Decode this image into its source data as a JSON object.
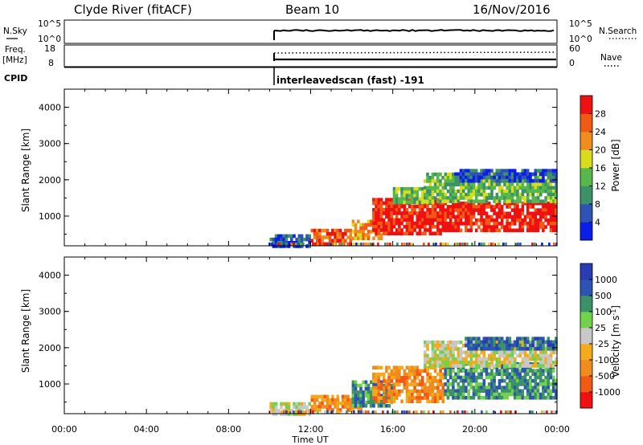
{
  "header": {
    "station": "Clyde River (fitACF)",
    "beam": "Beam 10",
    "date": "16/Nov/2016"
  },
  "top_panels": {
    "nsky_label": "N.Sky",
    "nsky_ticks": [
      "10^5",
      "10^0"
    ],
    "nsearch_label": "N.Search",
    "nsearch_ticks": [
      "10^5",
      "10^0"
    ],
    "freq_label_line1": "Freq.",
    "freq_label_line2": "[MHz]",
    "freq_ticks": [
      "18",
      "8"
    ],
    "nave_label": "Nave",
    "nave_ticks": [
      "60",
      "0"
    ],
    "cpid_label": "CPID",
    "cpid_text": "interleavedscan (fast) -191"
  },
  "colors": {
    "power_scale": [
      "#0a1ee6",
      "#2d53b4",
      "#3c9169",
      "#56b84b",
      "#d7dc1e",
      "#f08c1e",
      "#f05a14",
      "#ee1111"
    ],
    "velocity_scale": [
      "#ee1111",
      "#f05a14",
      "#f08c1e",
      "#f5aa1e",
      "#c8c8c8",
      "#72d24b",
      "#3c9169",
      "#2d53b4",
      "#283cb4"
    ]
  },
  "chart_data": [
    {
      "type": "heatmap",
      "ylabel": "Slant Range [km]",
      "xlabel": "",
      "x_range_hours": [
        0,
        24
      ],
      "ylim": [
        180,
        4500
      ],
      "yticks": [
        "1000",
        "2000",
        "3000",
        "4000"
      ],
      "xticks": [
        "00:00",
        "04:00",
        "08:00",
        "12:00",
        "16:00",
        "20:00",
        "00:00"
      ],
      "colorbar_label": "Power [dB]",
      "colorbar_ticks": [
        "4",
        "8",
        "12",
        "16",
        "20",
        "24",
        "28"
      ],
      "data_start_hour": 9.95,
      "echo_regions": [
        {
          "t0": 10.0,
          "t1": 12.0,
          "r0": 200,
          "r1": 500,
          "level": 1
        },
        {
          "t0": 12.0,
          "t1": 14.0,
          "r0": 250,
          "r1": 650,
          "level": 6
        },
        {
          "t0": 14.0,
          "t1": 15.5,
          "r0": 350,
          "r1": 900,
          "level": 5
        },
        {
          "t0": 15.0,
          "t1": 18.5,
          "r0": 500,
          "r1": 1500,
          "level": 7
        },
        {
          "t0": 16.0,
          "t1": 18.0,
          "r0": 1400,
          "r1": 1800,
          "level": 3
        },
        {
          "t0": 18.5,
          "t1": 24.0,
          "r0": 600,
          "r1": 1400,
          "level": 7
        },
        {
          "t0": 17.5,
          "t1": 24.0,
          "r0": 1400,
          "r1": 2200,
          "level": 3
        },
        {
          "t0": 19.0,
          "t1": 24.0,
          "r0": 2000,
          "r1": 2300,
          "level": 1
        }
      ]
    },
    {
      "type": "heatmap",
      "ylabel": "Slant Range [km]",
      "xlabel": "Time UT",
      "x_range_hours": [
        0,
        24
      ],
      "ylim": [
        180,
        4500
      ],
      "yticks": [
        "1000",
        "2000",
        "3000",
        "4000"
      ],
      "xticks": [
        "00:00",
        "04:00",
        "08:00",
        "12:00",
        "16:00",
        "20:00",
        "00:00"
      ],
      "colorbar_label": "Velocity [m s^-1]",
      "colorbar_ticks": [
        "-1000",
        "-500",
        "-100",
        "-25",
        "25",
        "100",
        "500",
        "1000"
      ],
      "data_start_hour": 9.95,
      "echo_regions": [
        {
          "t0": 10.0,
          "t1": 12.0,
          "r0": 200,
          "r1": 500,
          "level": 4
        },
        {
          "t0": 12.0,
          "t1": 14.5,
          "r0": 250,
          "r1": 700,
          "level": 2
        },
        {
          "t0": 14.0,
          "t1": 16.0,
          "r0": 400,
          "r1": 1100,
          "level": 6
        },
        {
          "t0": 15.0,
          "t1": 18.5,
          "r0": 500,
          "r1": 1500,
          "level": 2
        },
        {
          "t0": 18.5,
          "t1": 24.0,
          "r0": 600,
          "r1": 1600,
          "level": 6
        },
        {
          "t0": 17.5,
          "t1": 24.0,
          "r0": 1500,
          "r1": 2200,
          "level": 4
        },
        {
          "t0": 19.5,
          "t1": 24.0,
          "r0": 2000,
          "r1": 2300,
          "level": 7
        }
      ]
    }
  ]
}
